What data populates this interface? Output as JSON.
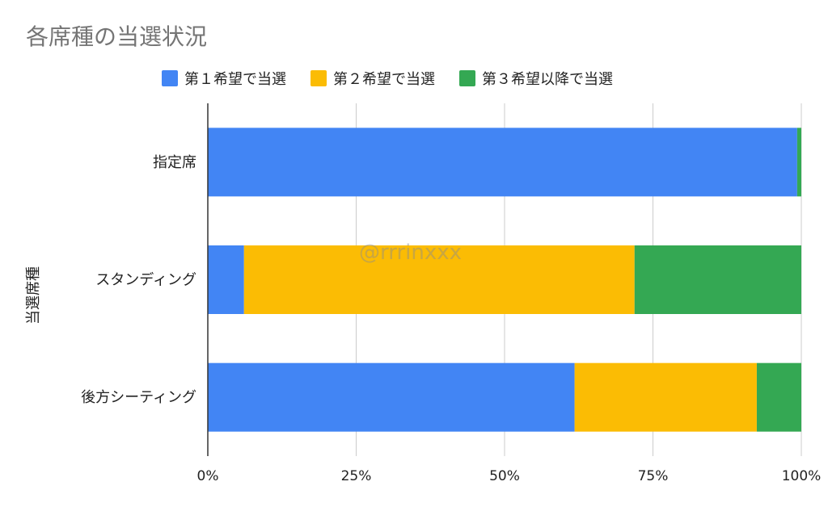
{
  "chart_data": {
    "type": "bar",
    "orientation": "horizontal",
    "stacked": "percent",
    "title": "各席種の当選状況",
    "ylabel": "当選席種",
    "xlabel": "",
    "categories": [
      "指定席",
      "スタンディング",
      "後方シーティング"
    ],
    "series": [
      {
        "name": "第１希望で当選",
        "color": "#4285f4",
        "values": [
          99.3,
          6.1,
          61.8
        ]
      },
      {
        "name": "第２希望で当選",
        "color": "#fbbc04",
        "values": [
          0,
          65.8,
          30.7
        ]
      },
      {
        "name": "第３希望以降で当選",
        "color": "#34a853",
        "values": [
          0.7,
          28.1,
          7.5
        ]
      }
    ],
    "xticks": [
      "0%",
      "25%",
      "50%",
      "75%",
      "100%"
    ],
    "xlim": [
      0,
      100
    ],
    "grid": "vertical",
    "legend_position": "top"
  },
  "watermark": "@rrrinxxx"
}
